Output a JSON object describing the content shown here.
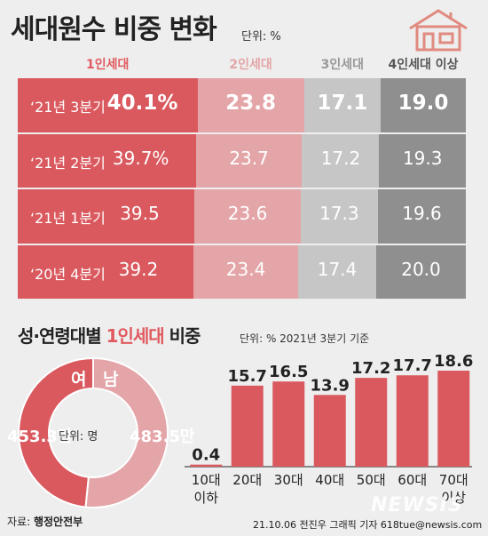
{
  "title": "세대원수 비중 변화",
  "unit_top": "단위: %",
  "section2": {
    "title_a": "성·연령대별 ",
    "title_b": "1인세대",
    "title_c": " 비중",
    "unit": "단위: % 2021년 3분기 기준"
  },
  "footer": {
    "source_label": "자료: ",
    "source_name": "행정안전부",
    "credit": "21.10.06 전진우 그래픽 기자 618tue@newsis.com",
    "watermark": "NEWSIS"
  },
  "colors": {
    "c1": "#d9595e",
    "c2": "#e4a5a8",
    "c3": "#c6c6c6",
    "c4": "#8f8f8f",
    "accent": "#e05a5f",
    "bars": "#d9595e"
  },
  "chart_data": [
    {
      "type": "bar",
      "title": "세대원수 비중 변화",
      "unit": "%",
      "stacked": true,
      "orientation": "horizontal",
      "categories": [
        "‘21년 3분기",
        "‘21년 2분기",
        "‘21년 1분기",
        "‘20년 4분기"
      ],
      "series": [
        {
          "name": "1인세대",
          "values": [
            40.1,
            39.7,
            39.5,
            39.2
          ],
          "labels": [
            "40.1%",
            "39.7%",
            "39.5",
            "39.2"
          ]
        },
        {
          "name": "2인세대",
          "values": [
            23.8,
            23.7,
            23.6,
            23.4
          ],
          "labels": [
            "23.8",
            "23.7",
            "23.6",
            "23.4"
          ]
        },
        {
          "name": "3인세대",
          "values": [
            17.1,
            17.2,
            17.3,
            17.4
          ],
          "labels": [
            "17.1",
            "17.2",
            "17.3",
            "17.4"
          ]
        },
        {
          "name": "4인세대 이상",
          "values": [
            19.0,
            19.3,
            19.6,
            20.0
          ],
          "labels": [
            "19.0",
            "19.3",
            "19.6",
            "20.0"
          ]
        }
      ]
    },
    {
      "type": "pie",
      "center_text": "단위: 명",
      "slices": [
        {
          "name": "여",
          "value": 453.3,
          "label": "453.3만"
        },
        {
          "name": "남",
          "value": 483.5,
          "label": "483.5만"
        }
      ]
    },
    {
      "type": "bar",
      "unit": "%",
      "categories": [
        [
          "10대",
          "이하"
        ],
        [
          "20대"
        ],
        [
          "30대"
        ],
        [
          "40대"
        ],
        [
          "50대"
        ],
        [
          "60대"
        ],
        [
          "70대",
          "이상"
        ]
      ],
      "values": [
        0.4,
        15.7,
        16.5,
        13.9,
        17.2,
        17.7,
        18.6
      ],
      "labels": [
        "0.4",
        "15.7",
        "16.5",
        "13.9",
        "17.2",
        "17.7",
        "18.6"
      ]
    }
  ]
}
